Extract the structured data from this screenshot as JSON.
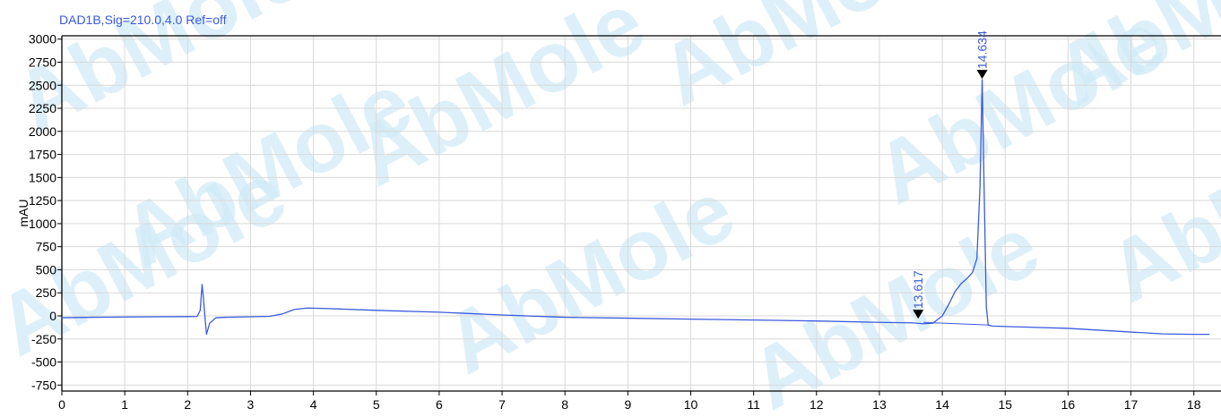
{
  "signal_label": "DAD1B,Sig=210.0,4.0  Ref=off",
  "colors": {
    "trace": "#3b5bdb",
    "grid": "#d9d9d9",
    "axis": "#000000",
    "watermark": "#cfeaf7",
    "watermark_accent": "#fde9a6"
  },
  "watermark_text": "AbMole",
  "chart_data": {
    "type": "line",
    "title": "",
    "xlabel": "",
    "ylabel": "mAU",
    "xlim": [
      0,
      18.25
    ],
    "ylim": [
      -800,
      3050
    ],
    "xticks": [
      0,
      1,
      2,
      3,
      4,
      5,
      6,
      7,
      8,
      9,
      10,
      11,
      12,
      13,
      14,
      15,
      16,
      17,
      18
    ],
    "yticks": [
      3000,
      2750,
      2500,
      2250,
      2000,
      1750,
      1500,
      1250,
      1000,
      750,
      500,
      250,
      0,
      -250,
      -500,
      -750
    ],
    "grid": true,
    "series": [
      {
        "points": [
          [
            0,
            -20
          ],
          [
            0.5,
            -15
          ],
          [
            1.0,
            -12
          ],
          [
            1.5,
            -10
          ],
          [
            2.0,
            -8
          ],
          [
            2.15,
            -6
          ],
          [
            2.2,
            60
          ],
          [
            2.23,
            340
          ],
          [
            2.25,
            200
          ],
          [
            2.28,
            -50
          ],
          [
            2.3,
            -200
          ],
          [
            2.35,
            -80
          ],
          [
            2.45,
            -20
          ],
          [
            2.6,
            -15
          ],
          [
            3.0,
            -10
          ],
          [
            3.3,
            -5
          ],
          [
            3.5,
            20
          ],
          [
            3.7,
            70
          ],
          [
            3.9,
            85
          ],
          [
            4.2,
            80
          ],
          [
            5.0,
            60
          ],
          [
            6.0,
            40
          ],
          [
            7.0,
            10
          ],
          [
            8.0,
            -15
          ],
          [
            9.0,
            -25
          ],
          [
            10.0,
            -35
          ],
          [
            11.0,
            -45
          ],
          [
            12.0,
            -55
          ],
          [
            13.0,
            -70
          ],
          [
            13.5,
            -75
          ],
          [
            13.7,
            -85
          ],
          [
            13.85,
            -80
          ],
          [
            14.0,
            0
          ],
          [
            14.1,
            120
          ],
          [
            14.2,
            260
          ],
          [
            14.3,
            350
          ],
          [
            14.4,
            410
          ],
          [
            14.48,
            470
          ],
          [
            14.55,
            620
          ],
          [
            14.6,
            1400
          ],
          [
            14.634,
            2560
          ],
          [
            14.67,
            1200
          ],
          [
            14.7,
            100
          ],
          [
            14.73,
            -100
          ],
          [
            14.8,
            -110
          ],
          [
            15.0,
            -115
          ],
          [
            16.0,
            -135
          ],
          [
            17.0,
            -175
          ],
          [
            17.5,
            -195
          ],
          [
            18.0,
            -200
          ],
          [
            18.25,
            -200
          ]
        ]
      }
    ],
    "peaks": [
      {
        "rt": 13.617,
        "label": "13.617",
        "y": -40
      },
      {
        "rt": 14.634,
        "label": "14.634",
        "y": 2560
      }
    ]
  }
}
